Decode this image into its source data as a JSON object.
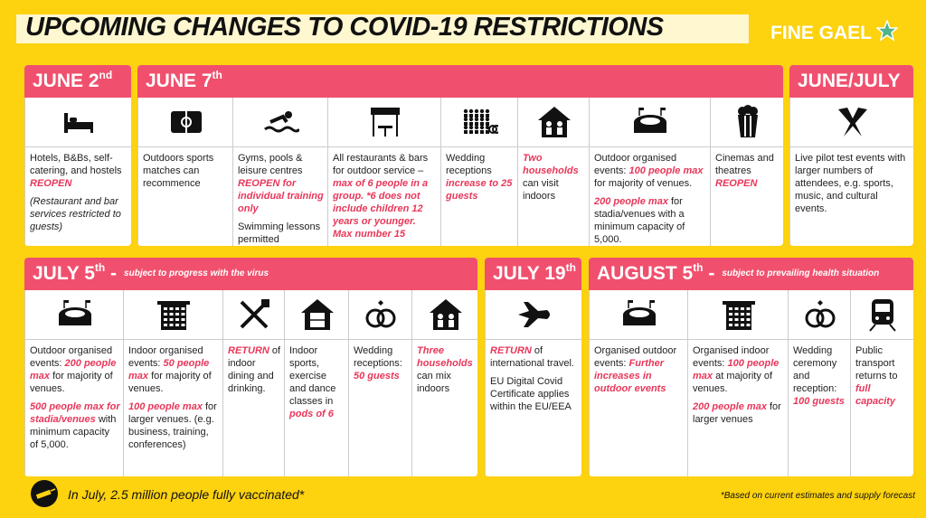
{
  "header": {
    "title": "UPCOMING CHANGES TO COVID-19 RESTRICTIONS",
    "brand": "FINE GAEL"
  },
  "panels": [
    {
      "heading": {
        "text": "JUNE 2",
        "sup": "nd"
      },
      "columns": [
        {
          "paragraphs": [
            [
              {
                "text": "Hotels, B&Bs, self-catering, and hostels "
              },
              {
                "text": "REOPEN",
                "style": "em"
              }
            ],
            [
              {
                "text": "(Restaurant and bar services restricted to guests)",
                "style": "italic"
              }
            ]
          ]
        }
      ]
    },
    {
      "heading": {
        "text": "JUNE 7",
        "sup": "th"
      },
      "columns": [
        {
          "paragraphs": [
            [
              {
                "text": "Outdoors sports matches can recommence"
              }
            ]
          ]
        },
        {
          "paragraphs": [
            [
              {
                "text": "Gyms, pools & leisure centres "
              },
              {
                "text": "REOPEN for individual training only",
                "style": "em"
              }
            ],
            [
              {
                "text": "Swimming lessons permitted"
              }
            ]
          ]
        },
        {
          "paragraphs": [
            [
              {
                "text": "All restaurants & bars for outdoor service – "
              },
              {
                "text": "max of 6 people in a group. *6 does not include children 12 years or younger. Max number 15",
                "style": "em"
              }
            ]
          ]
        },
        {
          "paragraphs": [
            [
              {
                "text": "Wedding receptions "
              },
              {
                "text": "increase to 25 guests",
                "style": "em"
              }
            ]
          ]
        },
        {
          "paragraphs": [
            [
              {
                "text": "Two households",
                "style": "em"
              },
              {
                "text": " can visit indoors"
              }
            ]
          ]
        },
        {
          "paragraphs": [
            [
              {
                "text": "Outdoor organised events: "
              },
              {
                "text": "100 people max",
                "style": "em"
              },
              {
                "text": " for majority of venues."
              }
            ],
            [
              {
                "text": "200 people max",
                "style": "em"
              },
              {
                "text": " for stadia/venues with a minimum capacity of 5,000."
              }
            ]
          ]
        },
        {
          "paragraphs": [
            [
              {
                "text": "Cinemas and theatres "
              },
              {
                "text": "REOPEN",
                "style": "em"
              }
            ]
          ]
        }
      ]
    },
    {
      "heading": {
        "text": "JUNE/JULY"
      },
      "columns": [
        {
          "paragraphs": [
            [
              {
                "text": "Live pilot test events with larger numbers of attendees, e.g. sports, music, and cultural events."
              }
            ]
          ]
        }
      ]
    },
    {
      "heading": {
        "text": "JULY 5",
        "sup": "th",
        "after": " -",
        "subtitle": "subject to progress with the virus"
      },
      "columns": [
        {
          "paragraphs": [
            [
              {
                "text": "Outdoor organised events: "
              },
              {
                "text": "200 people max",
                "style": "em"
              },
              {
                "text": " for majority of venues."
              }
            ],
            [
              {
                "text": "500 people max for stadia/venues",
                "style": "em"
              },
              {
                "text": " with minimum capacity of 5,000."
              }
            ]
          ]
        },
        {
          "paragraphs": [
            [
              {
                "text": "Indoor organised events: "
              },
              {
                "text": "50 people max",
                "style": "em"
              },
              {
                "text": " for majority of venues."
              }
            ],
            [
              {
                "text": "100 people max",
                "style": "em"
              },
              {
                "text": " for larger venues. (e.g. business, training, conferences)"
              }
            ]
          ]
        },
        {
          "paragraphs": [
            [
              {
                "text": "RETURN",
                "style": "em"
              },
              {
                "text": " of indoor dining and drinking."
              }
            ]
          ]
        },
        {
          "paragraphs": [
            [
              {
                "text": "Indoor sports, exercise and dance classes in "
              },
              {
                "text": "pods of 6",
                "style": "em"
              }
            ]
          ]
        },
        {
          "paragraphs": [
            [
              {
                "text": "Wedding receptions: "
              },
              {
                "text": "50 guests",
                "style": "em"
              }
            ]
          ]
        },
        {
          "paragraphs": [
            [
              {
                "text": "Three households",
                "style": "em"
              },
              {
                "text": " can mix indoors"
              }
            ]
          ]
        }
      ]
    },
    {
      "heading": {
        "text": "JULY 19",
        "sup": "th"
      },
      "columns": [
        {
          "paragraphs": [
            [
              {
                "text": "RETURN",
                "style": "em"
              },
              {
                "text": " of international travel."
              }
            ],
            [
              {
                "text": "EU Digital Covid Certificate applies within the EU/EEA"
              }
            ]
          ]
        }
      ]
    },
    {
      "heading": {
        "text": "AUGUST 5",
        "sup": "th",
        "after": " -",
        "subtitle": "subject to prevailing health situation"
      },
      "columns": [
        {
          "paragraphs": [
            [
              {
                "text": "Organised outdoor events: "
              },
              {
                "text": "Further increases in outdoor events",
                "style": "em"
              }
            ]
          ]
        },
        {
          "paragraphs": [
            [
              {
                "text": "Organised indoor events: "
              },
              {
                "text": "100 people max",
                "style": "em"
              },
              {
                "text": " at majority of venues."
              }
            ],
            [
              {
                "text": "200 people max",
                "style": "em"
              },
              {
                "text": " for larger venues"
              }
            ]
          ]
        },
        {
          "paragraphs": [
            [
              {
                "text": "Wedding ceremony and reception: "
              },
              {
                "text": "100 guests",
                "style": "em"
              }
            ]
          ]
        },
        {
          "paragraphs": [
            [
              {
                "text": "Public transport returns to "
              },
              {
                "text": "full capacity",
                "style": "em"
              }
            ]
          ]
        }
      ]
    }
  ],
  "footer": {
    "note": "In July, 2.5 million people fully vaccinated*",
    "footnote": "*Based on current estimates and supply forecast"
  }
}
